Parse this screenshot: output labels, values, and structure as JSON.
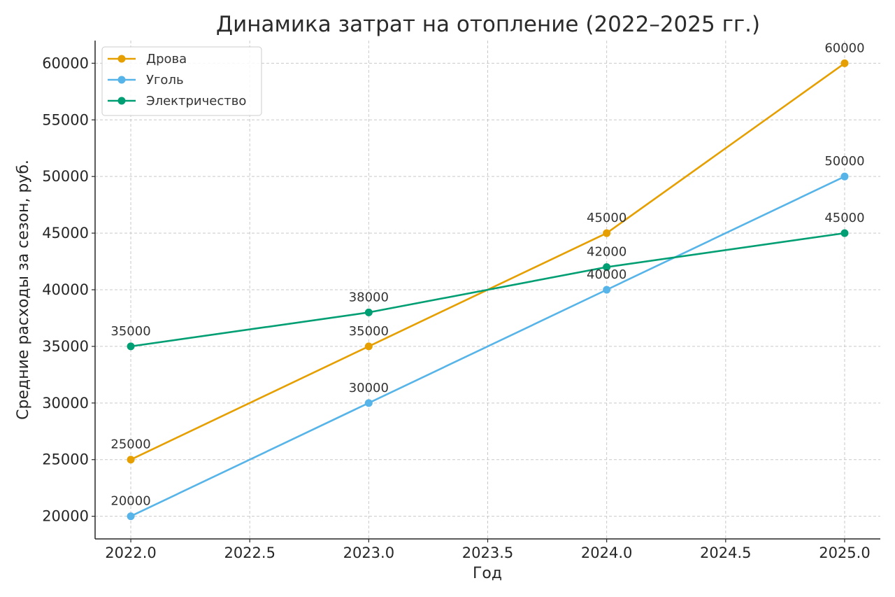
{
  "chart_data": {
    "type": "line",
    "title": "Динамика затрат на отопление (2022–2025 гг.)",
    "xlabel": "Год",
    "ylabel": "Средние расходы за сезон, руб.",
    "x": [
      2022,
      2023,
      2024,
      2025
    ],
    "xlim": [
      2021.85,
      2025.15
    ],
    "ylim": [
      18000,
      62000
    ],
    "x_ticks": [
      2022.0,
      2022.5,
      2023.0,
      2023.5,
      2024.0,
      2024.5,
      2025.0
    ],
    "x_tick_labels": [
      "2022.0",
      "2022.5",
      "2023.0",
      "2023.5",
      "2024.0",
      "2024.5",
      "2025.0"
    ],
    "y_ticks": [
      20000,
      25000,
      30000,
      35000,
      40000,
      45000,
      50000,
      55000,
      60000
    ],
    "y_tick_labels": [
      "20000",
      "25000",
      "30000",
      "35000",
      "40000",
      "45000",
      "50000",
      "55000",
      "60000"
    ],
    "grid": true,
    "legend_position": "top-left",
    "series": [
      {
        "name": "Дрова",
        "color": "#E69F00",
        "values": [
          25000,
          35000,
          45000,
          60000
        ],
        "labels": [
          "25000",
          "35000",
          "45000",
          "60000"
        ]
      },
      {
        "name": "Уголь",
        "color": "#56B4E9",
        "values": [
          20000,
          30000,
          40000,
          50000
        ],
        "labels": [
          "20000",
          "30000",
          "40000",
          "50000"
        ]
      },
      {
        "name": "Электричество",
        "color": "#009E73",
        "values": [
          35000,
          38000,
          42000,
          45000
        ],
        "labels": [
          "35000",
          "38000",
          "42000",
          "45000"
        ]
      }
    ]
  }
}
